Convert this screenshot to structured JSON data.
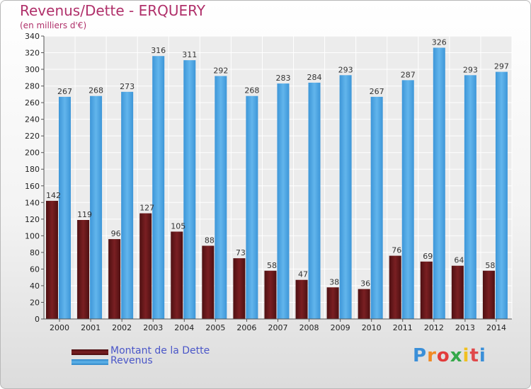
{
  "header": {
    "title": "Revenus/Dette - ERQUERY",
    "subtitle": "(en milliers d'€)"
  },
  "colors": {
    "debt": "#7a1f22",
    "revenue": "#4aa3e0",
    "title": "#b0306a",
    "legend_text": "#4a56c8"
  },
  "legend": {
    "debt_label": "Montant de la Dette",
    "revenue_label": "Revenus"
  },
  "logo": {
    "text": "Proxiti"
  },
  "chart_data": {
    "type": "bar",
    "title": "Revenus/Dette - ERQUERY",
    "subtitle": "(en milliers d'€)",
    "xlabel": "",
    "ylabel": "",
    "ylim": [
      0,
      340
    ],
    "y_ticks": [
      0,
      20,
      40,
      60,
      80,
      100,
      120,
      140,
      160,
      180,
      200,
      220,
      240,
      260,
      280,
      300,
      320,
      340
    ],
    "grid": true,
    "legend_position": "bottom-left",
    "categories": [
      "2000",
      "2001",
      "2002",
      "2003",
      "2004",
      "2005",
      "2006",
      "2007",
      "2008",
      "2009",
      "2010",
      "2011",
      "2012",
      "2013",
      "2014"
    ],
    "series": [
      {
        "name": "Montant de la Dette",
        "values": [
          142,
          119,
          96,
          127,
          105,
          88,
          73,
          58,
          47,
          38,
          36,
          76,
          69,
          64,
          58
        ]
      },
      {
        "name": "Revenus",
        "values": [
          267,
          268,
          273,
          316,
          311,
          292,
          268,
          283,
          284,
          293,
          267,
          287,
          326,
          293,
          297
        ]
      }
    ]
  }
}
